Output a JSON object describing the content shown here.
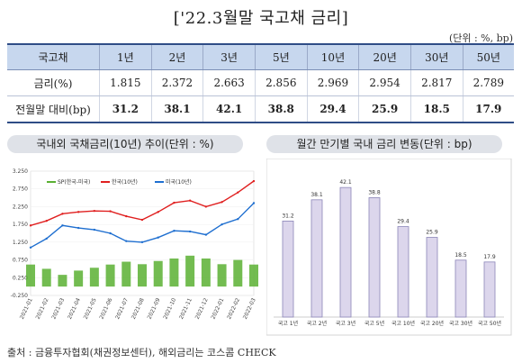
{
  "title": "['22.3월말  국고채  금리]",
  "unit": "(단위 : %, bp)",
  "table": {
    "header": [
      "국고채",
      "1년",
      "2년",
      "3년",
      "5년",
      "10년",
      "20년",
      "30년",
      "50년"
    ],
    "rows": [
      {
        "label": "금리(%)",
        "values": [
          "1.815",
          "2.372",
          "2.663",
          "2.856",
          "2.969",
          "2.954",
          "2.817",
          "2.789"
        ]
      },
      {
        "label": "전월말 대비(bp)",
        "values": [
          "31.2",
          "38.1",
          "42.1",
          "38.8",
          "29.4",
          "25.9",
          "18.5",
          "17.9"
        ]
      }
    ]
  },
  "left_panel_title": "국내외 국채금리(10년) 추이(단위 : %)",
  "right_panel_title": "월간 만기별 국내 금리 변동(단위 : bp)",
  "source": "출처 : 금융투자협회(채권정보센터), 해외금리는 코스콤 CHECK",
  "chart_data": [
    {
      "type": "line",
      "title": "국내외 국채금리(10년) 추이(단위 : %)",
      "yticks": [
        "3.250",
        "2.750",
        "2.250",
        "1.750",
        "1.250",
        "0.750",
        "0.250",
        "-0.250"
      ],
      "ylim": [
        -0.25,
        3.25
      ],
      "xticks": [
        "2021-01",
        "2021-02",
        "2021-03",
        "2021-04",
        "2021-05",
        "2021-06",
        "2021-07",
        "2021-08",
        "2021-09",
        "2021-10",
        "2021-11",
        "2021-12",
        "2022-01",
        "2022-02",
        "2022-03"
      ],
      "legend": [
        "SP(한국-미국)",
        "한국(10년)",
        "미국(10년)"
      ],
      "colors": {
        "spread": "#5bb033",
        "korea": "#e02020",
        "us": "#1f6fd0"
      },
      "series": [
        {
          "name": "한국(10년)",
          "values": [
            1.72,
            1.85,
            2.05,
            2.1,
            2.13,
            2.12,
            1.98,
            1.88,
            2.1,
            2.36,
            2.42,
            2.25,
            2.38,
            2.65,
            2.97
          ]
        },
        {
          "name": "미국(10년)",
          "values": [
            1.1,
            1.35,
            1.72,
            1.65,
            1.6,
            1.5,
            1.28,
            1.25,
            1.38,
            1.57,
            1.55,
            1.46,
            1.75,
            1.9,
            2.35
          ]
        },
        {
          "name": "SP(한국-미국)",
          "values": [
            0.62,
            0.5,
            0.33,
            0.45,
            0.53,
            0.62,
            0.7,
            0.63,
            0.72,
            0.79,
            0.87,
            0.79,
            0.63,
            0.75,
            0.62
          ]
        }
      ]
    },
    {
      "type": "bar",
      "title": "월간 만기별 국내 금리 변동(단위 : bp)",
      "categories": [
        "국고 1년",
        "국고 2년",
        "국고 3년",
        "국고 5년",
        "국고 10년",
        "국고 20년",
        "국고 30년",
        "국고 50년"
      ],
      "values": [
        31.2,
        38.1,
        42.1,
        38.8,
        29.4,
        25.9,
        18.5,
        17.9
      ],
      "ylim": [
        0,
        48
      ],
      "colors": {
        "bar": "#dcd6ec",
        "border": "#8c86b8"
      }
    }
  ]
}
